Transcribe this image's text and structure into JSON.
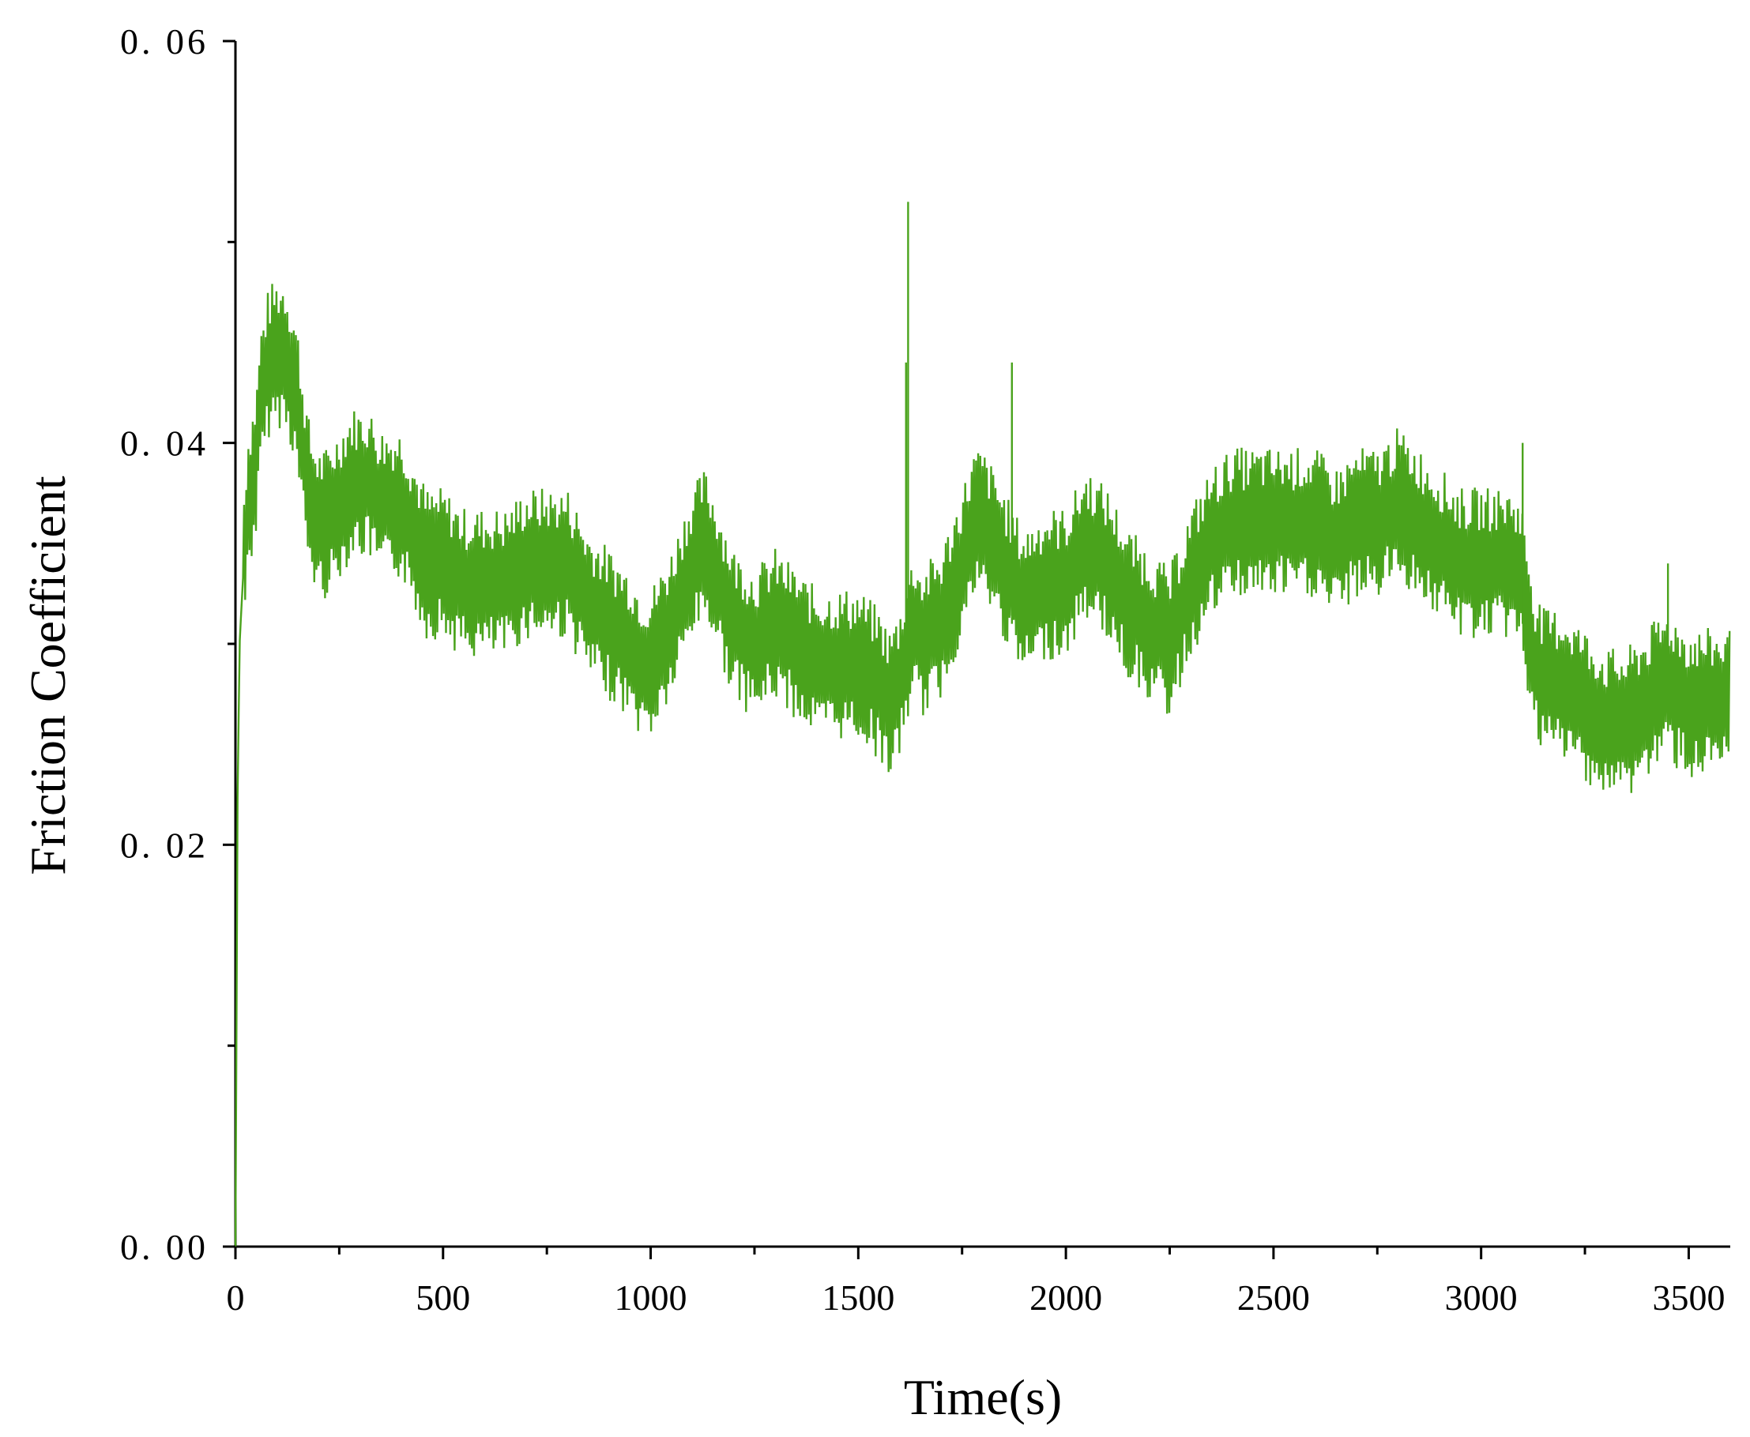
{
  "chart_data": {
    "type": "line",
    "title": "",
    "xlabel": "Time(s)",
    "ylabel": "Friction Coefficient",
    "xlim": [
      0,
      3600
    ],
    "ylim": [
      0,
      0.06
    ],
    "x_ticks": [
      "0",
      "500",
      "1000",
      "1500",
      "2000",
      "2500",
      "3000",
      "3500"
    ],
    "y_ticks": [
      "0.00",
      "0.02",
      "0.04",
      "0.06"
    ],
    "grid": false,
    "legend": "none",
    "series_color": "#4aa31c",
    "series": [
      {
        "name": "",
        "x": [
          0,
          5,
          10,
          20,
          30,
          50,
          60,
          80,
          100,
          120,
          140,
          150,
          160,
          180,
          200,
          220,
          250,
          280,
          300,
          320,
          350,
          380,
          400,
          420,
          440,
          460,
          500,
          550,
          600,
          650,
          700,
          750,
          800,
          850,
          900,
          950,
          980,
          1000,
          1050,
          1100,
          1130,
          1150,
          1200,
          1250,
          1300,
          1350,
          1400,
          1450,
          1500,
          1550,
          1575,
          1600,
          1620,
          1640,
          1650,
          1700,
          1750,
          1780,
          1800,
          1850,
          1870,
          1900,
          1950,
          2000,
          2050,
          2100,
          2150,
          2200,
          2250,
          2300,
          2350,
          2400,
          2450,
          2500,
          2550,
          2600,
          2650,
          2700,
          2750,
          2800,
          2850,
          2900,
          2950,
          3000,
          3050,
          3080,
          3100,
          3130,
          3150,
          3200,
          3250,
          3300,
          3350,
          3400,
          3450,
          3500,
          3550,
          3600
        ],
        "y": [
          0.0,
          0.022,
          0.03,
          0.034,
          0.037,
          0.039,
          0.042,
          0.044,
          0.0445,
          0.0445,
          0.043,
          0.042,
          0.04,
          0.037,
          0.036,
          0.036,
          0.037,
          0.038,
          0.038,
          0.038,
          0.037,
          0.037,
          0.037,
          0.036,
          0.035,
          0.034,
          0.034,
          0.033,
          0.033,
          0.033,
          0.034,
          0.034,
          0.034,
          0.032,
          0.031,
          0.03,
          0.029,
          0.029,
          0.031,
          0.034,
          0.035,
          0.034,
          0.031,
          0.03,
          0.031,
          0.03,
          0.029,
          0.029,
          0.029,
          0.028,
          0.027,
          0.028,
          0.03,
          0.031,
          0.03,
          0.031,
          0.034,
          0.036,
          0.036,
          0.034,
          0.033,
          0.032,
          0.033,
          0.033,
          0.035,
          0.034,
          0.032,
          0.031,
          0.03,
          0.033,
          0.035,
          0.036,
          0.036,
          0.036,
          0.036,
          0.036,
          0.035,
          0.036,
          0.036,
          0.037,
          0.036,
          0.035,
          0.034,
          0.034,
          0.034,
          0.034,
          0.033,
          0.029,
          0.028,
          0.028,
          0.027,
          0.026,
          0.026,
          0.027,
          0.028,
          0.027,
          0.027,
          0.027
        ]
      }
    ],
    "spikes": [
      {
        "x": 1615,
        "y": 0.044
      },
      {
        "x": 1620,
        "y": 0.052
      },
      {
        "x": 1870,
        "y": 0.044
      },
      {
        "x": 3100,
        "y": 0.04
      },
      {
        "x": 3450,
        "y": 0.034
      }
    ]
  }
}
